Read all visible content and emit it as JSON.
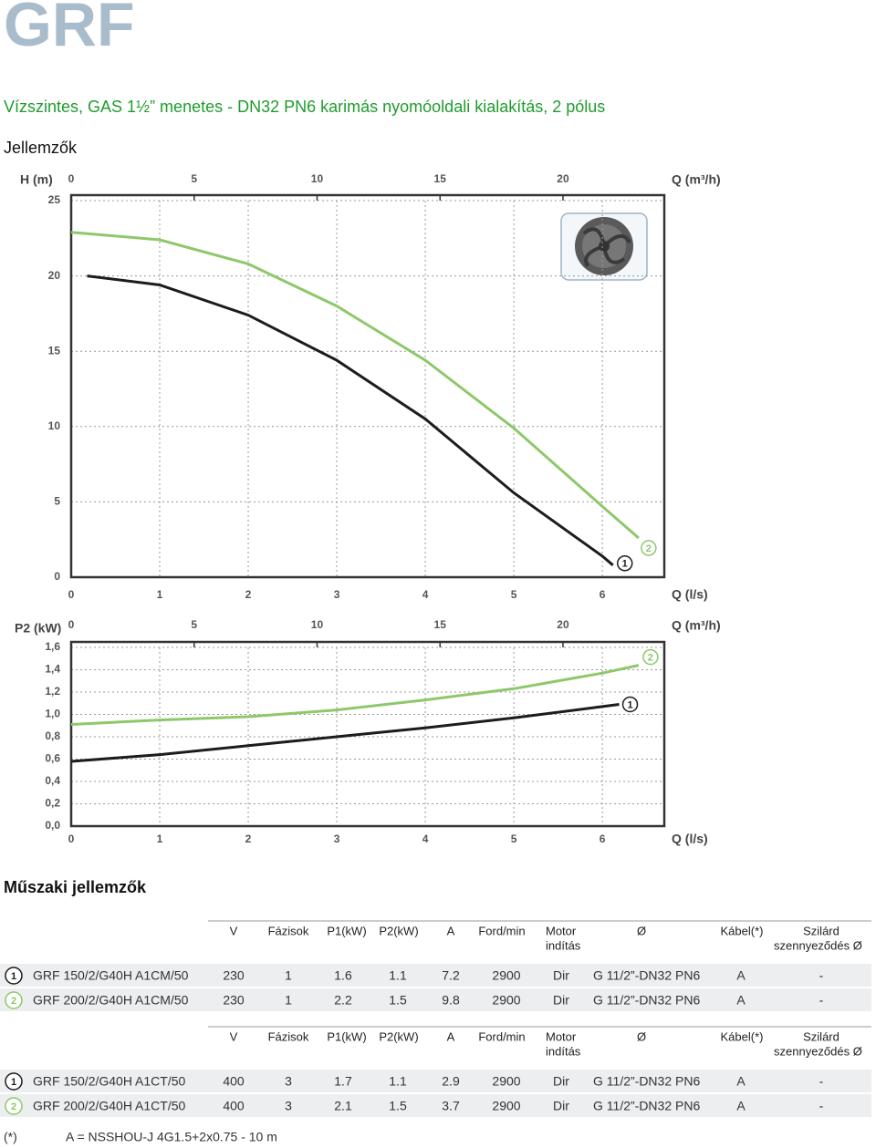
{
  "header": {
    "title": "GRF",
    "subtitle": "Vízszintes, GAS 1½” menetes - DN32 PN6 karimás nyomóoldali kialakítás, 2 pólus",
    "section1": "Jellemzők",
    "section2": "Műszaki jellemzők"
  },
  "chart_data": [
    {
      "type": "line",
      "ylabel": "H (m)",
      "xlabel": "Q (l/s)",
      "x2label": "Q (m³/h)",
      "xlim": [
        0,
        6.7
      ],
      "xticks": [
        0,
        1,
        2,
        3,
        4,
        5,
        6
      ],
      "x2lim": [
        0,
        24.12
      ],
      "x2ticks": [
        0,
        5,
        10,
        15,
        20
      ],
      "ylim": [
        0,
        25
      ],
      "yticks": [
        0,
        5,
        10,
        15,
        20,
        25
      ],
      "grid": true,
      "series": [
        {
          "name": "1",
          "color": "#1c1c1c",
          "x": [
            0.18,
            1,
            2,
            3,
            4,
            5,
            6,
            6.12
          ],
          "values": [
            20.0,
            19.4,
            17.4,
            14.4,
            10.5,
            5.6,
            1.4,
            0.8
          ]
        },
        {
          "name": "2",
          "color": "#8dc86a",
          "x": [
            0,
            1,
            2,
            3,
            4,
            5,
            6,
            6.41
          ],
          "values": [
            22.9,
            22.4,
            20.8,
            18.0,
            14.4,
            9.9,
            4.7,
            2.6
          ]
        }
      ]
    },
    {
      "type": "line",
      "ylabel": "P2 (kW)",
      "xlabel": "Q (l/s)",
      "x2label": "Q (m³/h)",
      "xlim": [
        0,
        6.7
      ],
      "xticks": [
        0,
        1,
        2,
        3,
        4,
        5,
        6
      ],
      "x2lim": [
        0,
        24.12
      ],
      "x2ticks": [
        0,
        5,
        10,
        15,
        20
      ],
      "ylim": [
        0,
        1.6
      ],
      "yticks": [
        {
          "value": 0,
          "label": "0,0"
        },
        {
          "value": 0.2,
          "label": "0,2"
        },
        {
          "value": 0.4,
          "label": "0,4"
        },
        {
          "value": 0.6,
          "label": "0,6"
        },
        {
          "value": 0.8,
          "label": "0,8"
        },
        {
          "value": 1,
          "label": "1,0"
        },
        {
          "value": 1.2,
          "label": "1,2"
        },
        {
          "value": 1.4,
          "label": "1,4"
        },
        {
          "value": 1.6,
          "label": "1,6"
        }
      ],
      "grid": true,
      "series": [
        {
          "name": "1",
          "color": "#1c1c1c",
          "x": [
            0,
            1,
            2,
            3,
            4,
            5,
            6,
            6.19
          ],
          "values": [
            0.58,
            0.64,
            0.72,
            0.8,
            0.88,
            0.97,
            1.07,
            1.09
          ]
        },
        {
          "name": "2",
          "color": "#8dc86a",
          "x": [
            0,
            1,
            2,
            3,
            4,
            5,
            6,
            6.41
          ],
          "values": [
            0.91,
            0.95,
            0.98,
            1.04,
            1.13,
            1.23,
            1.37,
            1.44
          ]
        }
      ]
    }
  ],
  "tables": [
    {
      "columns": [
        "V",
        "Fázisok",
        "P1(kW)",
        "P2(kW)",
        "A",
        "Ford/min",
        [
          "Motor",
          "indítás"
        ],
        "Ø",
        "Kábel(*)",
        [
          "Szilárd",
          "szennyeződés Ø"
        ]
      ],
      "rows": [
        [
          "1",
          "GRF 150/2/G40H A1CM/50",
          230,
          1,
          1.6,
          1.1,
          7.2,
          2900,
          "Dir",
          "G 11/2”-DN32 PN6",
          "A",
          "-"
        ],
        [
          "2",
          "GRF 200/2/G40H A1CM/50",
          230,
          1,
          2.2,
          1.5,
          9.8,
          2900,
          "Dir",
          "G 11/2”-DN32 PN6",
          "A",
          "-"
        ]
      ]
    },
    {
      "columns": [
        "V",
        "Fázisok",
        "P1(kW)",
        "P2(kW)",
        "A",
        "Ford/min",
        [
          "Motor",
          "indítás"
        ],
        "Ø",
        "Kábel(*)",
        [
          "Szilárd",
          "szennyeződés Ø"
        ]
      ],
      "rows": [
        [
          "1",
          "GRF 150/2/G40H A1CT/50",
          400,
          3,
          1.7,
          1.1,
          2.9,
          2900,
          "Dir",
          "G 11/2”-DN32 PN6",
          "A",
          "-"
        ],
        [
          "2",
          "GRF 200/2/G40H A1CT/50",
          400,
          3,
          2.1,
          1.5,
          3.7,
          2900,
          "Dir",
          "G 11/2”-DN32 PN6",
          "A",
          "-"
        ]
      ]
    }
  ],
  "footnote": {
    "mark": "(*)",
    "text": "A = NSSHOU-J 4G1.5+2x0.75 - 10 m"
  }
}
